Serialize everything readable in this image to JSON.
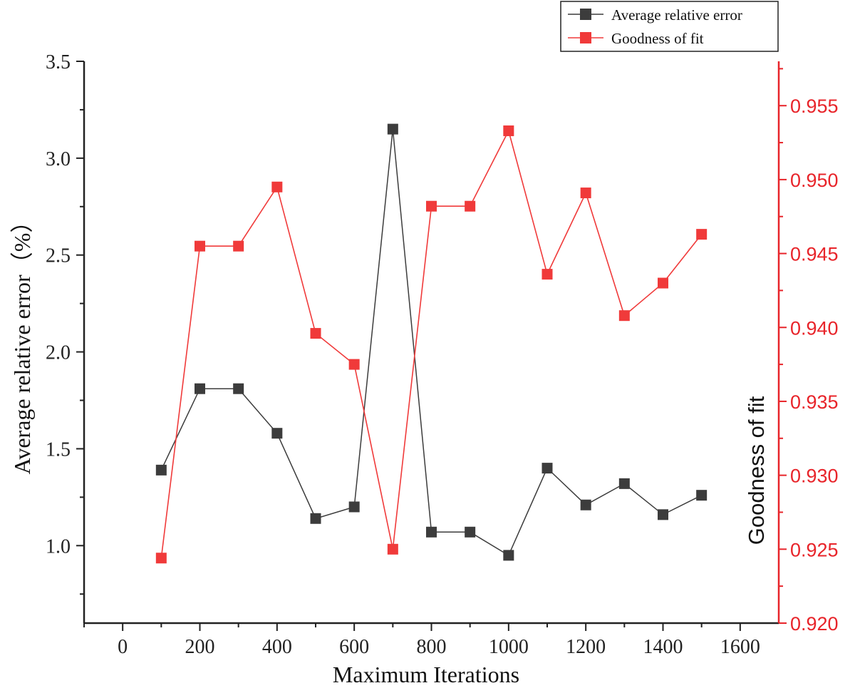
{
  "chart_data": {
    "type": "line",
    "title": "",
    "xlabel": "Maximum Iterations",
    "ylabel": "Average relative error（%）",
    "y2label": "Goodness of fit",
    "xlim": [
      -100,
      1700
    ],
    "ylim": [
      0.6,
      3.5
    ],
    "y2lim": [
      0.92,
      0.958
    ],
    "x_ticks": [
      "0",
      "200",
      "400",
      "600",
      "800",
      "1000",
      "1200",
      "1400",
      "1600"
    ],
    "y_ticks": [
      "1.0",
      "1.5",
      "2.0",
      "2.5",
      "3.0",
      "3.5"
    ],
    "y2_ticks": [
      "0.920",
      "0.925",
      "0.930",
      "0.935",
      "0.940",
      "0.945",
      "0.950",
      "0.955"
    ],
    "x": [
      100,
      200,
      300,
      400,
      500,
      600,
      700,
      800,
      900,
      1000,
      1100,
      1200,
      1300,
      1400,
      1500
    ],
    "series": [
      {
        "name": "Average relative error",
        "axis": "left",
        "color": "#3c3c3c",
        "marker": "square",
        "values": [
          1.39,
          1.81,
          1.81,
          1.58,
          1.14,
          1.2,
          3.15,
          1.07,
          1.07,
          0.95,
          1.4,
          1.21,
          1.32,
          1.16,
          1.26
        ]
      },
      {
        "name": "Goodness of fit",
        "axis": "right",
        "color": "#f03a3a",
        "marker": "square",
        "values": [
          0.9244,
          0.9455,
          0.9455,
          0.9495,
          0.9396,
          0.9375,
          0.925,
          0.9482,
          0.9482,
          0.9533,
          0.9436,
          0.9491,
          0.9408,
          0.943,
          0.9463
        ]
      }
    ],
    "legend_position": "top-right",
    "grid": false
  }
}
